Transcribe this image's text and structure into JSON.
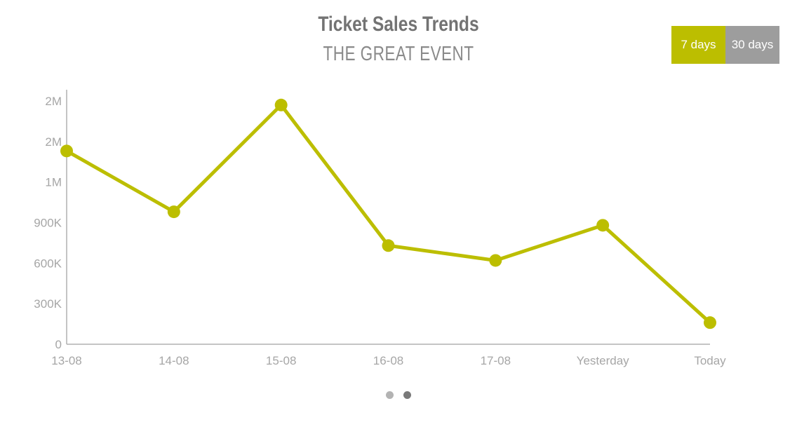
{
  "header": {
    "title": "Ticket Sales Trends",
    "subtitle": "THE GREAT EVENT"
  },
  "range_toggle": {
    "options": [
      {
        "label": "7 days",
        "active": true
      },
      {
        "label": "30 days",
        "active": false
      }
    ]
  },
  "pagination": {
    "pages": 2,
    "current": 2
  },
  "colors": {
    "accent": "#bcbe00",
    "inactive": "#9d9d9d",
    "axis": "#b0b0b0",
    "tick_text": "#a6a6a6"
  },
  "chart_data": {
    "type": "line",
    "title": "Ticket Sales Trends",
    "subtitle": "THE GREAT EVENT",
    "categories": [
      "13-08",
      "14-08",
      "15-08",
      "16-08",
      "17-08",
      "Yesterday",
      "Today"
    ],
    "series": [
      {
        "values": [
          1430000,
          980000,
          1770000,
          730000,
          620000,
          880000,
          160000
        ]
      }
    ],
    "y_ticks": [
      {
        "value": 0,
        "label": "0"
      },
      {
        "value": 300000,
        "label": "300K"
      },
      {
        "value": 600000,
        "label": "600K"
      },
      {
        "value": 900000,
        "label": "900K"
      },
      {
        "value": 1200000,
        "label": "1M"
      },
      {
        "value": 1500000,
        "label": "2M"
      },
      {
        "value": 1800000,
        "label": "2M"
      }
    ],
    "ylim": [
      -1300000,
      1800000
    ],
    "grid": false,
    "legend": "none"
  }
}
